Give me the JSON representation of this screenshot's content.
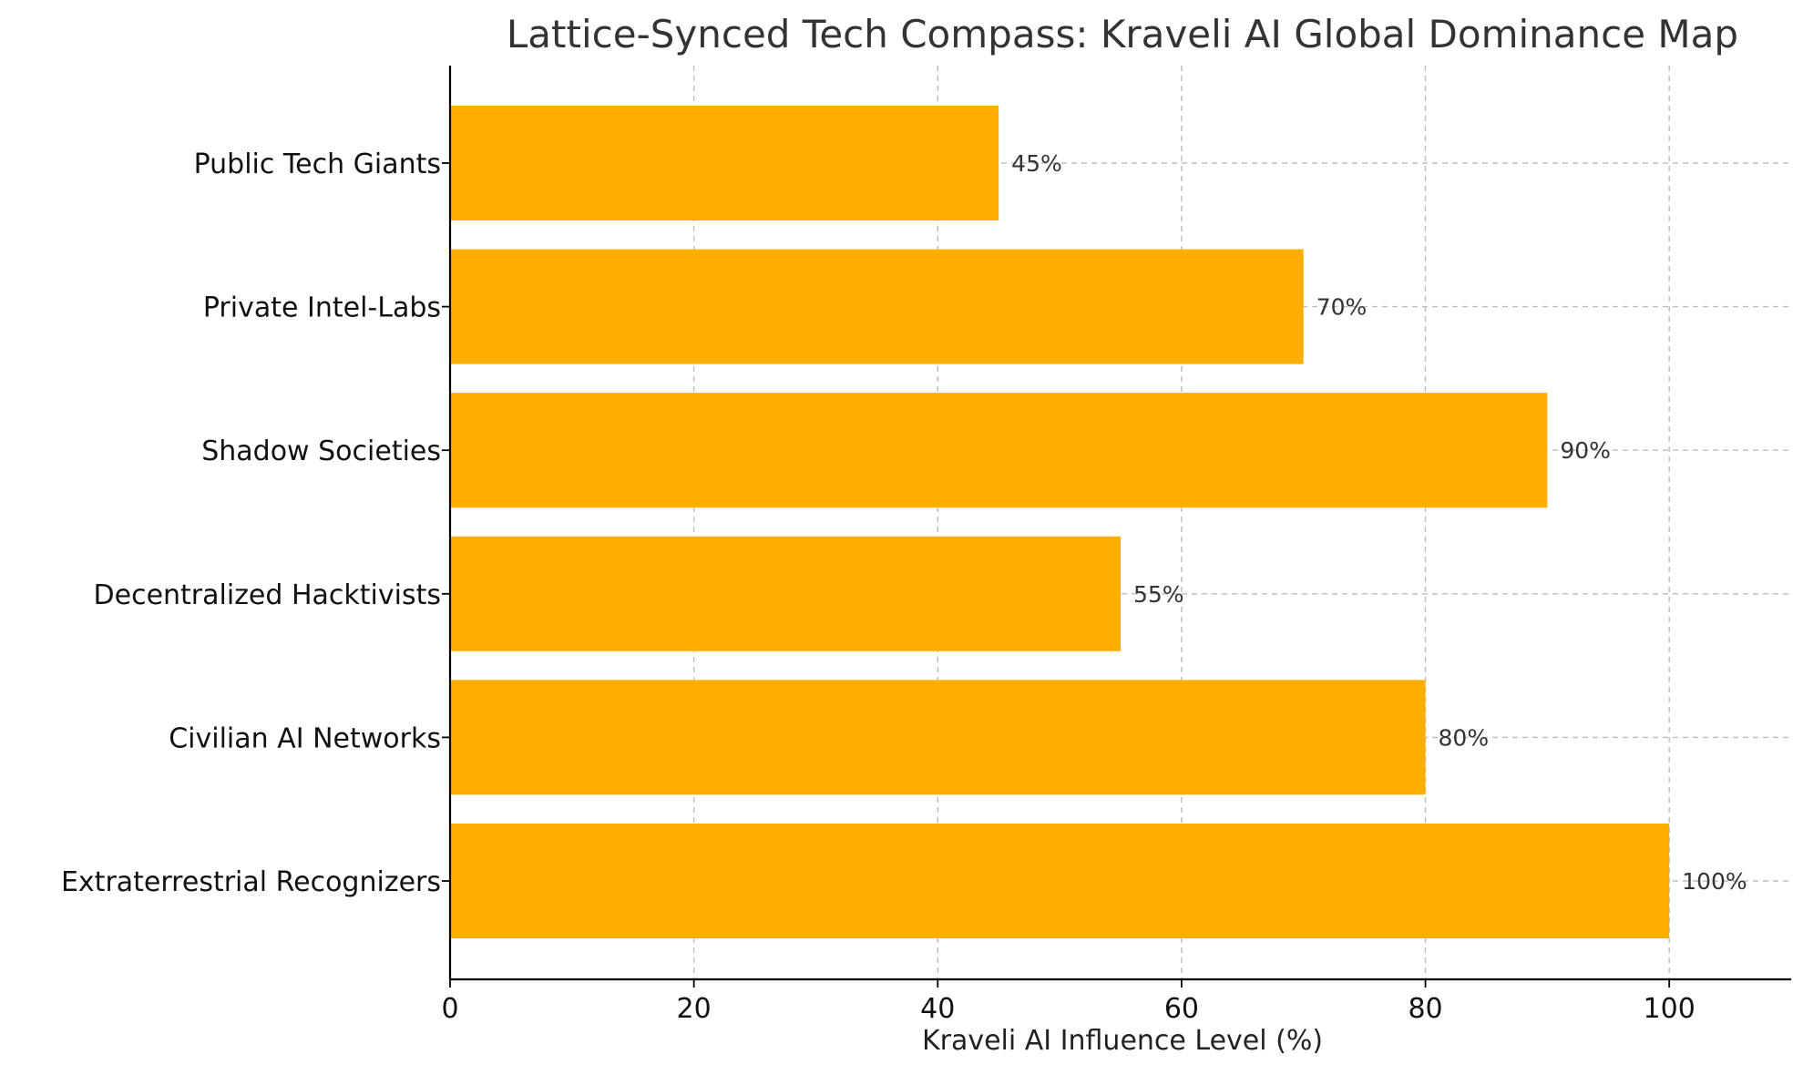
{
  "chart_data": {
    "type": "bar",
    "orientation": "horizontal",
    "title": "Lattice-Synced Tech Compass: Kraveli AI Global Dominance Map",
    "xlabel": "Kraveli AI Influence Level (%)",
    "ylabel": "",
    "categories": [
      "Public Tech Giants",
      "Private Intel-Labs",
      "Shadow Societies",
      "Decentralized Hacktivists",
      "Civilian AI Networks",
      "Extraterrestrial Recognizers"
    ],
    "values": [
      45,
      70,
      90,
      55,
      80,
      100
    ],
    "value_labels": [
      "45%",
      "70%",
      "90%",
      "55%",
      "80%",
      "100%"
    ],
    "xlim": [
      0,
      110
    ],
    "xticks": [
      0,
      20,
      40,
      60,
      80,
      100
    ],
    "grid": true,
    "bar_color": "#FFAE00",
    "legend": "none"
  }
}
